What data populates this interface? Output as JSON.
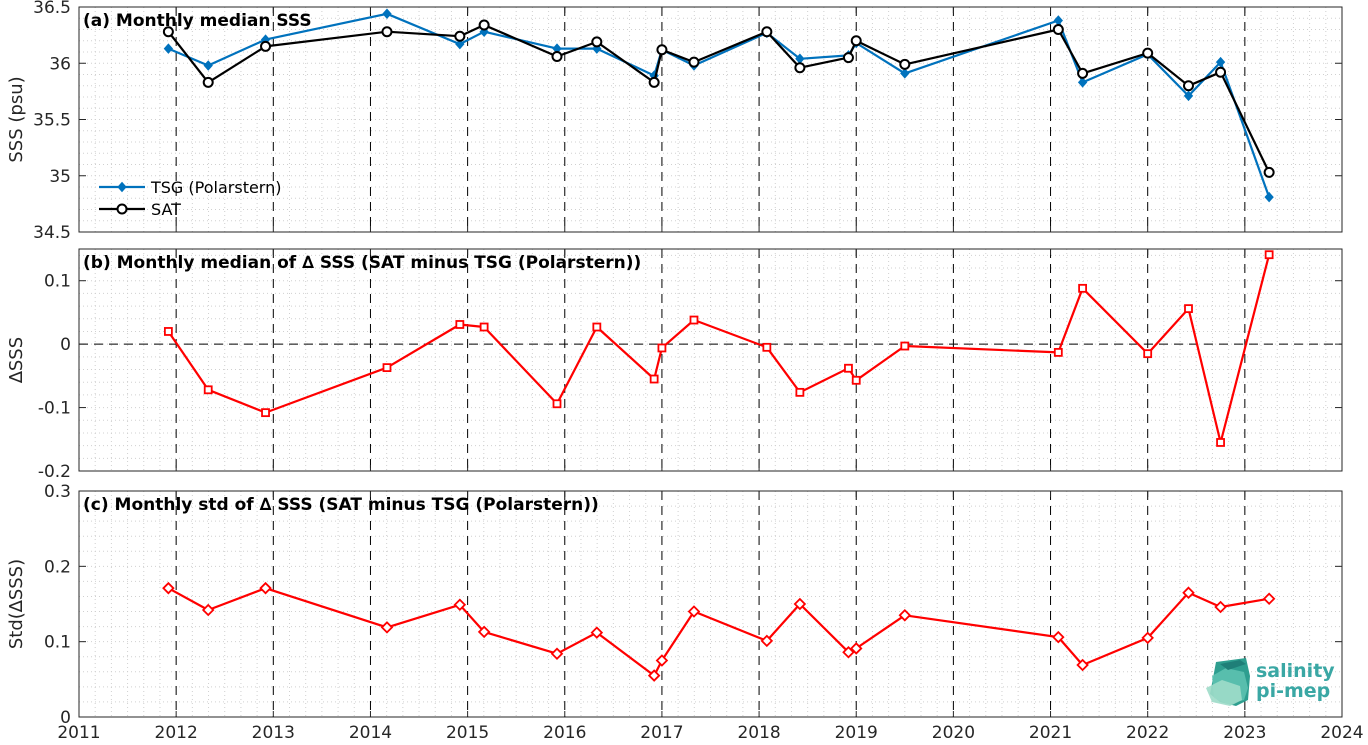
{
  "logo": {
    "line1": "salinity",
    "line2": "pi-mep"
  },
  "chart_data": [
    {
      "type": "line",
      "title": "(a) Monthly median SSS",
      "ylabel": "SSS (psu)",
      "xlim": [
        2011,
        2024
      ],
      "ylim": [
        34.5,
        36.5
      ],
      "xticks": [
        "2011",
        "2012",
        "2013",
        "2014",
        "2015",
        "2016",
        "2017",
        "2018",
        "2019",
        "2020",
        "2021",
        "2022",
        "2023",
        "2024"
      ],
      "yticks": [
        "34.5",
        "35",
        "35.5",
        "36",
        "36.5"
      ],
      "grid": true,
      "legend": "bottom-left",
      "series": [
        {
          "name": "TSG (Polarstern)",
          "color": "#0072bd",
          "marker": "diamond-filled",
          "x": [
            2011.92,
            2012.33,
            2012.92,
            2014.17,
            2014.92,
            2015.17,
            2015.92,
            2016.33,
            2016.92,
            2017.0,
            2017.33,
            2018.08,
            2018.42,
            2018.92,
            2019.0,
            2019.5,
            2021.08,
            2021.33,
            2022.0,
            2022.42,
            2022.75,
            2023.25
          ],
          "y": [
            36.13,
            35.98,
            36.21,
            36.44,
            36.17,
            36.28,
            36.13,
            36.13,
            35.89,
            36.12,
            35.98,
            36.27,
            36.04,
            36.07,
            36.18,
            35.91,
            36.38,
            35.83,
            36.08,
            35.71,
            36.01,
            34.81
          ]
        },
        {
          "name": "SAT",
          "color": "#000000",
          "marker": "circle-open",
          "x": [
            2011.92,
            2012.33,
            2012.92,
            2014.17,
            2014.92,
            2015.17,
            2015.92,
            2016.33,
            2016.92,
            2017.0,
            2017.33,
            2018.08,
            2018.42,
            2018.92,
            2019.0,
            2019.5,
            2021.08,
            2021.33,
            2022.0,
            2022.42,
            2022.75,
            2023.25
          ],
          "y": [
            36.28,
            35.83,
            36.15,
            36.28,
            36.24,
            36.34,
            36.06,
            36.19,
            35.83,
            36.12,
            36.01,
            36.28,
            35.96,
            36.05,
            36.2,
            35.99,
            36.3,
            35.91,
            36.09,
            35.8,
            35.92,
            35.03
          ]
        }
      ]
    },
    {
      "type": "line",
      "title": "(b) Monthly median of ∆ SSS (SAT minus TSG (Polarstern))",
      "ylabel": "∆SSS",
      "xlim": [
        2011,
        2024
      ],
      "ylim": [
        -0.2,
        0.15
      ],
      "xticks": [
        "2011",
        "2012",
        "2013",
        "2014",
        "2015",
        "2016",
        "2017",
        "2018",
        "2019",
        "2020",
        "2021",
        "2022",
        "2023",
        "2024"
      ],
      "yticks": [
        "-0.2",
        "-0.1",
        "0",
        "0.1"
      ],
      "grid": true,
      "series": [
        {
          "color": "#ff0000",
          "marker": "square-open",
          "x": [
            2011.92,
            2012.33,
            2012.92,
            2014.17,
            2014.92,
            2015.17,
            2015.92,
            2016.33,
            2016.92,
            2017.0,
            2017.33,
            2018.08,
            2018.42,
            2018.92,
            2019.0,
            2019.5,
            2021.08,
            2021.33,
            2022.0,
            2022.42,
            2022.75,
            2023.25
          ],
          "y": [
            0.02,
            -0.072,
            -0.108,
            -0.037,
            0.031,
            0.027,
            -0.094,
            0.027,
            -0.055,
            -0.006,
            0.038,
            -0.005,
            -0.076,
            -0.038,
            -0.057,
            -0.003,
            -0.013,
            0.088,
            -0.015,
            0.056,
            -0.155,
            0.141
          ]
        }
      ]
    },
    {
      "type": "line",
      "title": "(c) Monthly std of ∆ SSS (SAT minus TSG (Polarstern))",
      "ylabel": "Std(∆SSS)",
      "xlim": [
        2011,
        2024
      ],
      "ylim": [
        0,
        0.3
      ],
      "xticks": [
        "2011",
        "2012",
        "2013",
        "2014",
        "2015",
        "2016",
        "2017",
        "2018",
        "2019",
        "2020",
        "2021",
        "2022",
        "2023",
        "2024"
      ],
      "yticks": [
        "0",
        "0.1",
        "0.2",
        "0.3"
      ],
      "grid": true,
      "series": [
        {
          "color": "#ff0000",
          "marker": "diamond-open",
          "x": [
            2011.92,
            2012.33,
            2012.92,
            2014.17,
            2014.92,
            2015.17,
            2015.92,
            2016.33,
            2016.92,
            2017.0,
            2017.33,
            2018.08,
            2018.42,
            2018.92,
            2019.0,
            2019.5,
            2021.08,
            2021.33,
            2022.0,
            2022.42,
            2022.75,
            2023.25
          ],
          "y": [
            0.171,
            0.142,
            0.171,
            0.119,
            0.149,
            0.113,
            0.084,
            0.112,
            0.055,
            0.075,
            0.14,
            0.101,
            0.15,
            0.086,
            0.091,
            0.135,
            0.106,
            0.069,
            0.105,
            0.165,
            0.146,
            0.157
          ]
        }
      ]
    }
  ]
}
